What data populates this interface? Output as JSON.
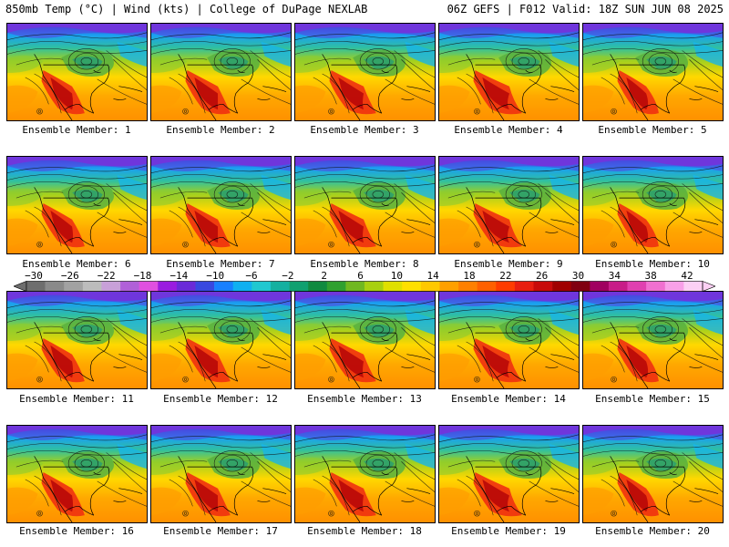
{
  "header": {
    "left": "850mb Temp (°C) | Wind (kts) | College of DuPage NEXLAB",
    "right": "06Z GEFS | F012 Valid: 18Z SUN JUN 08 2025"
  },
  "colorbar": {
    "ticks": [
      "−30",
      "−26",
      "−22",
      "−18",
      "−14",
      "−10",
      "−6",
      "−2",
      "2",
      "6",
      "10",
      "14",
      "18",
      "22",
      "26",
      "30",
      "34",
      "38",
      "42"
    ],
    "colors": [
      "#6e6e6e",
      "#8a8a8a",
      "#a2a2a2",
      "#bcbcbc",
      "#c8a0d8",
      "#b060d8",
      "#e050e0",
      "#9a1ce0",
      "#6a2ad8",
      "#3848e0",
      "#1880ff",
      "#10b0f0",
      "#20c8d0",
      "#14b0a0",
      "#10a070",
      "#108a40",
      "#30a030",
      "#70b820",
      "#a8d010",
      "#e0e000",
      "#ffe000",
      "#ffc800",
      "#ffa000",
      "#ff8000",
      "#ff6000",
      "#ff3c00",
      "#e81e10",
      "#c80a0a",
      "#a00000",
      "#800010",
      "#a00060",
      "#c81c88",
      "#e040b0",
      "#f070d0",
      "#f8a0e8",
      "#fcd0f4"
    ]
  },
  "panels": [
    {
      "label": "Ensemble Member: 1"
    },
    {
      "label": "Ensemble Member: 2"
    },
    {
      "label": "Ensemble Member: 3"
    },
    {
      "label": "Ensemble Member: 4"
    },
    {
      "label": "Ensemble Member: 5"
    },
    {
      "label": "Ensemble Member: 6"
    },
    {
      "label": "Ensemble Member: 7"
    },
    {
      "label": "Ensemble Member: 8"
    },
    {
      "label": "Ensemble Member: 9"
    },
    {
      "label": "Ensemble Member: 10"
    },
    {
      "label": "Ensemble Member: 11"
    },
    {
      "label": "Ensemble Member: 12"
    },
    {
      "label": "Ensemble Member: 13"
    },
    {
      "label": "Ensemble Member: 14"
    },
    {
      "label": "Ensemble Member: 15"
    },
    {
      "label": "Ensemble Member: 16"
    },
    {
      "label": "Ensemble Member: 17"
    },
    {
      "label": "Ensemble Member: 18"
    },
    {
      "label": "Ensemble Member: 19"
    },
    {
      "label": "Ensemble Member: 20"
    }
  ]
}
